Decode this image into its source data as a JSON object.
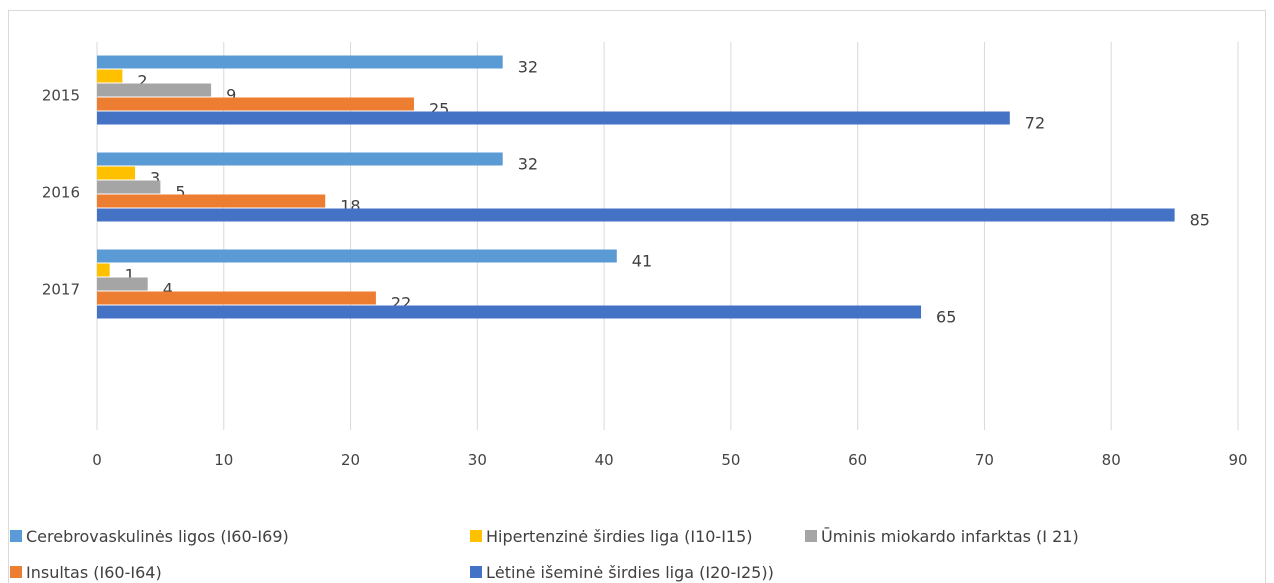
{
  "chart_data": {
    "type": "hbar",
    "categories": [
      "2015",
      "2016",
      "2017",
      null
    ],
    "series": [
      {
        "name": "Cerebrovaskulinės ligos (I60-I69)",
        "color": "#5b9bd5",
        "values": [
          32,
          32,
          41,
          null
        ]
      },
      {
        "name": "Hipertenzinė širdies liga (I10-I15)",
        "color": "#ffc000",
        "values": [
          2,
          3,
          1,
          null
        ]
      },
      {
        "name": "Ūminis miokardo infarktas (I 21)",
        "color": "#a5a5a5",
        "values": [
          9,
          5,
          4,
          null
        ]
      },
      {
        "name": "Insultas (I60-I64)",
        "color": "#ed7d31",
        "values": [
          25,
          18,
          22,
          null
        ]
      },
      {
        "name": "Lėtinė išeminė širdies liga (I20-I25))",
        "color": "#4472c4",
        "values": [
          72,
          85,
          65,
          null
        ]
      }
    ],
    "xlim": [
      0,
      90
    ],
    "xticks": [
      0,
      10,
      20,
      30,
      40,
      50,
      60,
      70,
      80,
      90
    ],
    "grid": true,
    "legend": "bottom"
  }
}
